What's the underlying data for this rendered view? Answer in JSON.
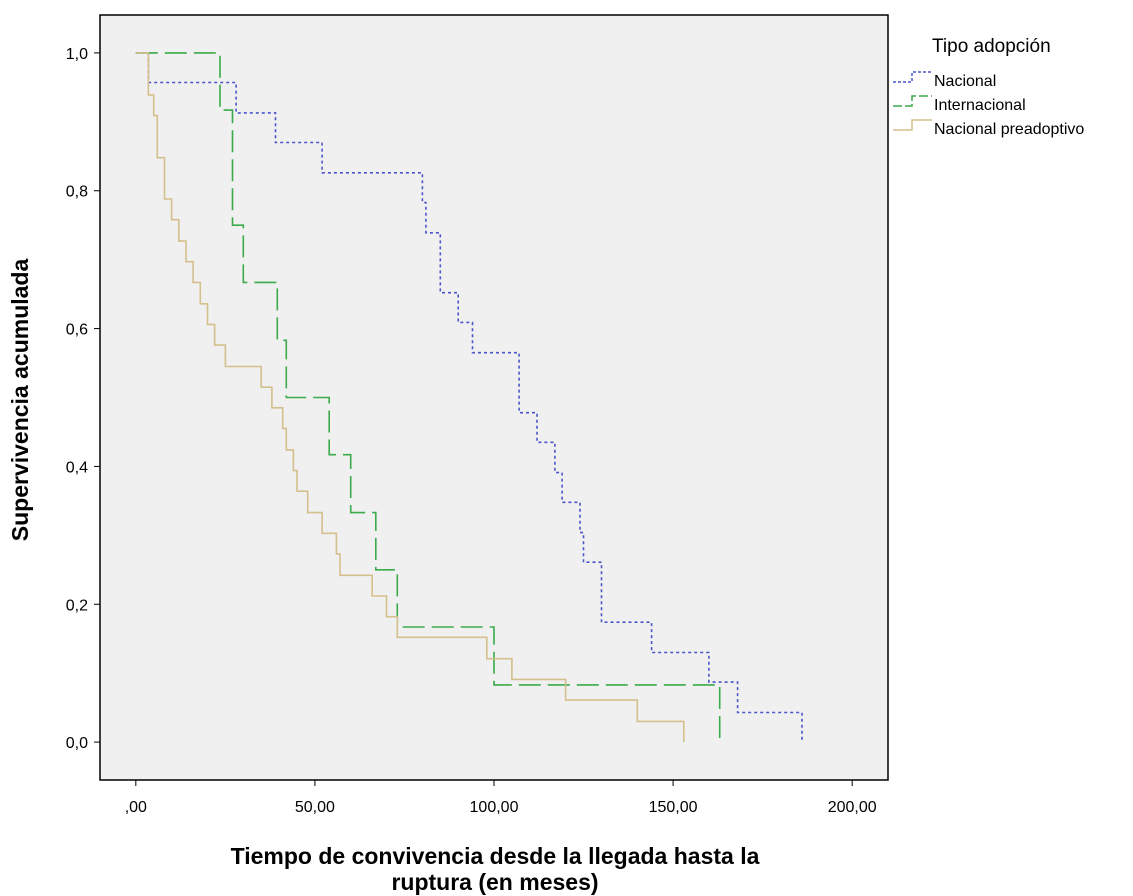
{
  "chart_data": {
    "type": "line",
    "xlabel_lines": [
      "Tiempo de convivencia desde la llegada hasta la",
      "ruptura  (en meses)"
    ],
    "ylabel": "Supervivencia acumulada",
    "xlim": [
      -10,
      210
    ],
    "ylim": [
      -0.055,
      1.055
    ],
    "x_ticks": [
      0,
      50,
      100,
      150,
      200
    ],
    "x_tick_labels": [
      ",00",
      "50,00",
      "100,00",
      "150,00",
      "200,00"
    ],
    "y_ticks": [
      0,
      0.2,
      0.4,
      0.6,
      0.8,
      1.0
    ],
    "y_tick_labels": [
      "0,0",
      "0,2",
      "0,4",
      "0,6",
      "0,8",
      "1,0"
    ],
    "grid": false,
    "plot_background": "#f0f0f0",
    "legend": {
      "title": "Tipo adopción",
      "position": "right-top"
    },
    "series": [
      {
        "name": "Nacional",
        "color": "#4a55c8",
        "dash": "dotted",
        "x": [
          0,
          3,
          3.5,
          5,
          10,
          14,
          28,
          39,
          46,
          52,
          56,
          62,
          70,
          80,
          81,
          82,
          85,
          90,
          94,
          100,
          107,
          110,
          112,
          116,
          117,
          119,
          124,
          125,
          130,
          144,
          160,
          163,
          168,
          186,
          186
        ],
        "y": [
          1.0,
          1.0,
          0.957,
          0.957,
          0.957,
          0.957,
          0.913,
          0.87,
          0.87,
          0.826,
          0.826,
          0.826,
          0.826,
          0.783,
          0.739,
          0.739,
          0.652,
          0.609,
          0.565,
          0.565,
          0.478,
          0.478,
          0.435,
          0.435,
          0.391,
          0.348,
          0.304,
          0.261,
          0.174,
          0.13,
          0.087,
          0.087,
          0.043,
          0.043,
          0.0
        ]
      },
      {
        "name": "Internacional",
        "color": "#3aaa4a",
        "dash": "long-dash",
        "x": [
          0,
          20,
          23.5,
          27,
          30,
          39.5,
          42,
          45,
          54,
          60,
          67,
          73,
          100,
          163,
          163
        ],
        "y": [
          1.0,
          1.0,
          0.917,
          0.75,
          0.667,
          0.583,
          0.5,
          0.5,
          0.417,
          0.333,
          0.25,
          0.167,
          0.083,
          0.083,
          0.0
        ]
      },
      {
        "name": "Nacional preadoptivo",
        "color": "#d4c08c",
        "dash": "solid",
        "x": [
          0,
          2,
          3.5,
          5,
          6,
          8,
          10,
          12,
          14,
          16,
          18,
          20,
          22,
          25,
          30,
          35,
          38,
          40,
          41,
          42,
          44,
          45,
          46,
          48,
          50,
          52,
          54,
          56,
          57,
          59,
          61,
          66,
          70,
          72,
          73,
          83,
          98,
          100,
          105,
          110,
          120,
          128,
          140,
          153,
          153
        ],
        "y": [
          1.0,
          1.0,
          0.939,
          0.909,
          0.848,
          0.788,
          0.758,
          0.727,
          0.697,
          0.667,
          0.636,
          0.606,
          0.576,
          0.545,
          0.545,
          0.515,
          0.485,
          0.485,
          0.455,
          0.424,
          0.394,
          0.364,
          0.364,
          0.333,
          0.333,
          0.303,
          0.303,
          0.273,
          0.242,
          0.242,
          0.242,
          0.212,
          0.182,
          0.182,
          0.152,
          0.152,
          0.121,
          0.121,
          0.091,
          0.091,
          0.061,
          0.061,
          0.03,
          0.03,
          0.0
        ]
      }
    ]
  }
}
